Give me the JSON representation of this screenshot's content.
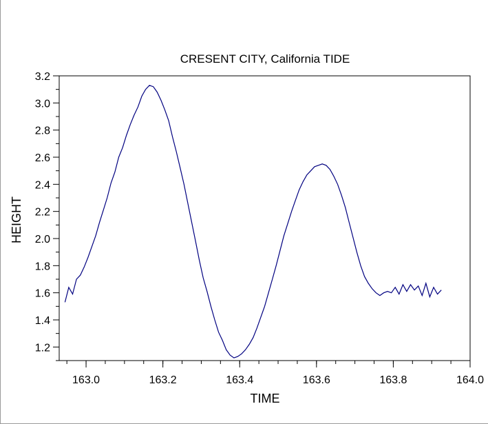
{
  "chart_data": {
    "type": "line",
    "title": "CRESENT CITY, California TIDE",
    "xlabel": "TIME",
    "ylabel": "HEIGHT",
    "xlim": [
      162.93,
      164.0
    ],
    "ylim": [
      1.1,
      3.2
    ],
    "x_ticks": [
      163.0,
      163.2,
      163.4,
      163.6,
      163.8,
      164.0
    ],
    "x_tick_labels": [
      "163.0",
      "163.2",
      "163.4",
      "163.6",
      "163.8",
      "164.0"
    ],
    "y_ticks": [
      1.2,
      1.4,
      1.6,
      1.8,
      2.0,
      2.2,
      2.4,
      2.6,
      2.8,
      3.0,
      3.2
    ],
    "y_tick_labels": [
      "1.2",
      "1.4",
      "1.6",
      "1.8",
      "2.0",
      "2.2",
      "2.4",
      "2.6",
      "2.8",
      "3.0",
      "3.2"
    ],
    "grid": false,
    "line_color": "#000080",
    "series": [
      {
        "x": [
          162.945,
          162.955,
          162.965,
          162.975,
          162.985,
          162.995,
          163.005,
          163.015,
          163.025,
          163.035,
          163.045,
          163.055,
          163.065,
          163.075,
          163.085,
          163.095,
          163.105,
          163.115,
          163.125,
          163.135,
          163.145,
          163.155,
          163.165,
          163.175,
          163.185,
          163.195,
          163.205,
          163.215,
          163.225,
          163.235,
          163.245,
          163.255,
          163.265,
          163.275,
          163.285,
          163.295,
          163.305,
          163.315,
          163.325,
          163.335,
          163.345,
          163.355,
          163.365,
          163.375,
          163.385,
          163.395,
          163.405,
          163.415,
          163.425,
          163.435,
          163.445,
          163.455,
          163.465,
          163.475,
          163.485,
          163.495,
          163.505,
          163.515,
          163.525,
          163.535,
          163.545,
          163.555,
          163.565,
          163.575,
          163.585,
          163.595,
          163.605,
          163.615,
          163.625,
          163.635,
          163.645,
          163.655,
          163.665,
          163.675,
          163.685,
          163.695,
          163.705,
          163.715,
          163.725,
          163.735,
          163.745,
          163.755,
          163.765,
          163.775,
          163.785,
          163.795,
          163.805,
          163.815,
          163.825,
          163.835,
          163.845,
          163.855,
          163.865,
          163.875,
          163.885,
          163.895,
          163.905,
          163.915,
          163.925
        ],
        "y": [
          1.53,
          1.64,
          1.59,
          1.7,
          1.73,
          1.79,
          1.86,
          1.94,
          2.02,
          2.12,
          2.21,
          2.3,
          2.41,
          2.49,
          2.6,
          2.67,
          2.76,
          2.84,
          2.91,
          2.97,
          3.05,
          3.1,
          3.13,
          3.12,
          3.08,
          3.02,
          2.95,
          2.87,
          2.75,
          2.64,
          2.52,
          2.4,
          2.26,
          2.12,
          1.98,
          1.84,
          1.71,
          1.61,
          1.5,
          1.4,
          1.31,
          1.25,
          1.18,
          1.14,
          1.12,
          1.13,
          1.15,
          1.18,
          1.22,
          1.27,
          1.34,
          1.42,
          1.5,
          1.6,
          1.7,
          1.8,
          1.91,
          2.02,
          2.11,
          2.2,
          2.28,
          2.36,
          2.42,
          2.47,
          2.5,
          2.53,
          2.54,
          2.55,
          2.54,
          2.51,
          2.46,
          2.4,
          2.32,
          2.23,
          2.12,
          2.01,
          1.9,
          1.8,
          1.72,
          1.67,
          1.63,
          1.6,
          1.58,
          1.6,
          1.61,
          1.6,
          1.64,
          1.59,
          1.66,
          1.61,
          1.66,
          1.62,
          1.65,
          1.58,
          1.67,
          1.57,
          1.64,
          1.59,
          1.62
        ]
      }
    ]
  }
}
